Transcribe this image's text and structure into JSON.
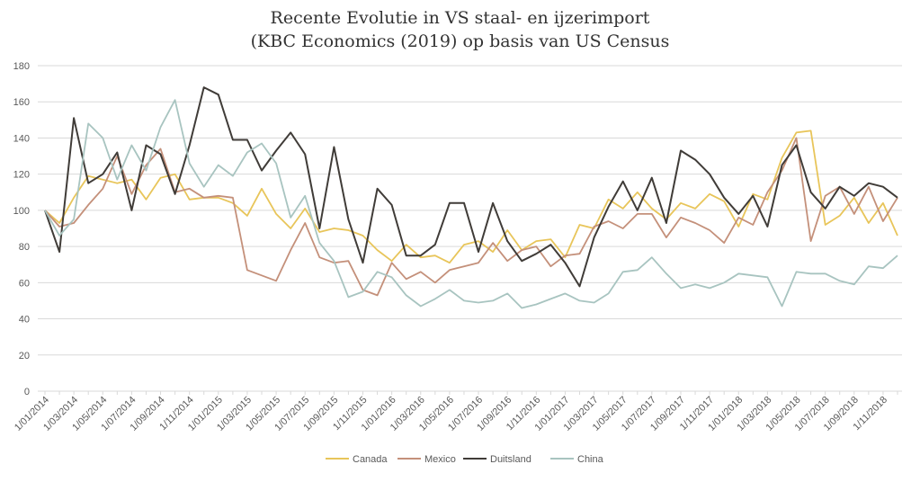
{
  "chart_data": {
    "type": "line",
    "title": "Recente Evolutie in VS staal- en ijzerimport",
    "subtitle": "(KBC Economics (2019) op basis van US Census",
    "ylim": [
      0,
      180
    ],
    "y_ticks": [
      "0",
      "20",
      "40",
      "60",
      "80",
      "100",
      "120",
      "140",
      "160",
      "180"
    ],
    "grid": true,
    "legend_position": "bottom",
    "x_tick_labels": [
      "1/01/2014",
      "1/03/2014",
      "1/05/2014",
      "1/07/2014",
      "1/09/2014",
      "1/11/2014",
      "1/01/2015",
      "1/03/2015",
      "1/05/2015",
      "1/07/2015",
      "1/09/2015",
      "1/11/2015",
      "1/01/2016",
      "1/03/2016",
      "1/05/2016",
      "1/07/2016",
      "1/09/2016",
      "1/11/2016",
      "1/01/2017",
      "1/03/2017",
      "1/05/2017",
      "1/07/2017",
      "1/09/2017",
      "1/11/2017",
      "1/01/2018",
      "1/03/2018",
      "1/05/2018",
      "1/07/2018",
      "1/09/2018",
      "1/11/2018"
    ],
    "n_points": 60,
    "series": [
      {
        "name": "Canada",
        "color": "#E8C55A",
        "values": [
          100,
          93,
          107,
          119,
          117,
          115,
          117,
          106,
          118,
          120,
          106,
          107,
          107,
          104,
          97,
          112,
          98,
          90,
          101,
          88,
          90,
          89,
          86,
          78,
          72,
          81,
          74,
          75,
          71,
          81,
          83,
          77,
          89,
          78,
          83,
          84,
          74,
          92,
          90,
          106,
          101,
          110,
          101,
          95,
          104,
          101,
          109,
          105,
          91,
          109,
          106,
          129,
          143,
          144,
          92,
          97,
          107,
          93,
          104,
          86
        ]
      },
      {
        "name": "Mexico",
        "color": "#C4907A",
        "values": [
          100,
          91,
          93,
          103,
          112,
          130,
          109,
          125,
          134,
          110,
          112,
          107,
          108,
          107,
          67,
          64,
          61,
          78,
          93,
          74,
          71,
          72,
          56,
          53,
          71,
          62,
          66,
          60,
          67,
          69,
          71,
          82,
          72,
          78,
          80,
          69,
          75,
          76,
          91,
          94,
          90,
          98,
          98,
          85,
          96,
          93,
          89,
          82,
          96,
          92,
          110,
          122,
          140,
          83,
          108,
          113,
          98,
          113,
          94,
          107
        ]
      },
      {
        "name": "Duitsland",
        "color": "#403C38",
        "values": [
          100,
          77,
          151,
          115,
          120,
          132,
          100,
          136,
          131,
          109,
          136,
          168,
          164,
          139,
          139,
          122,
          133,
          143,
          131,
          90,
          135,
          95,
          71,
          112,
          103,
          75,
          75,
          81,
          104,
          104,
          77,
          104,
          83,
          72,
          76,
          81,
          71,
          58,
          85,
          102,
          116,
          100,
          118,
          93,
          133,
          128,
          120,
          107,
          98,
          108,
          91,
          125,
          136,
          110,
          101,
          113,
          108,
          115,
          113,
          107
        ]
      },
      {
        "name": "China",
        "color": "#A8C4C0",
        "values": [
          100,
          86,
          95,
          148,
          140,
          117,
          136,
          122,
          146,
          161,
          126,
          113,
          125,
          119,
          132,
          137,
          126,
          96,
          108,
          82,
          72,
          52,
          55,
          66,
          63,
          53,
          47,
          51,
          56,
          50,
          49,
          50,
          54,
          46,
          48,
          51,
          54,
          50,
          49,
          54,
          66,
          67,
          74,
          65,
          57,
          59,
          57,
          60,
          65,
          64,
          63,
          47,
          66,
          65,
          65,
          61,
          59,
          69,
          68,
          75
        ]
      }
    ]
  }
}
